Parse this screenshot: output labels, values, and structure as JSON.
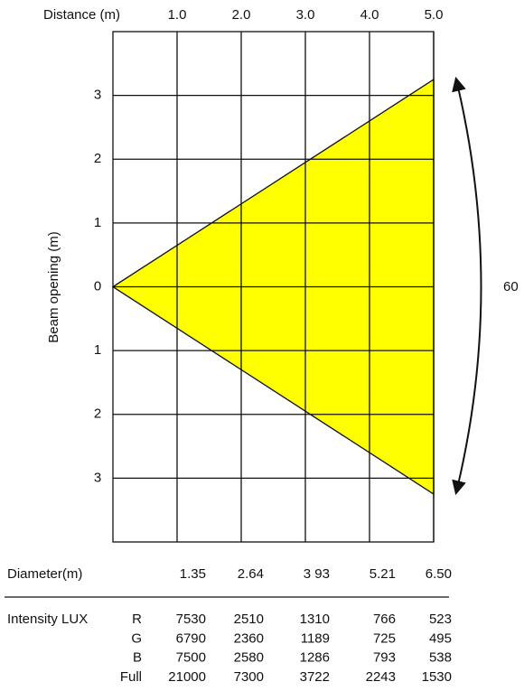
{
  "chart_data": {
    "type": "beam",
    "x_label": "Distance (m)",
    "y_label": "Beam opening (m)",
    "xlim": [
      0,
      5
    ],
    "ylim": [
      -4,
      4
    ],
    "xticks": [
      {
        "value": 1,
        "label": "1.0"
      },
      {
        "value": 2,
        "label": "2.0"
      },
      {
        "value": 3,
        "label": "3.0"
      },
      {
        "value": 4,
        "label": "4.0"
      },
      {
        "value": 5,
        "label": "5.0"
      }
    ],
    "yticks": [
      3,
      2,
      1,
      0,
      {
        "value": -1,
        "label": "1"
      },
      {
        "value": -2,
        "label": "2"
      },
      {
        "value": -3,
        "label": "3"
      }
    ],
    "grid": true,
    "color": "#ffff00",
    "beam_angle": 60
  },
  "table": {
    "diameter_label": "Diameter(m)",
    "diameters": [
      "1.35",
      "2.64",
      "3 93",
      "5.21",
      "6.50"
    ],
    "intensity_label": "Intensity LUX",
    "rows": [
      {
        "name": "R",
        "values": [
          7530,
          2510,
          1310,
          766,
          523
        ]
      },
      {
        "name": "G",
        "values": [
          6790,
          2360,
          1189,
          725,
          495
        ]
      },
      {
        "name": "B",
        "values": [
          7500,
          2580,
          1286,
          793,
          538
        ]
      },
      {
        "name": "Full",
        "values": [
          21000,
          7300,
          3722,
          2243,
          1530
        ]
      }
    ]
  }
}
